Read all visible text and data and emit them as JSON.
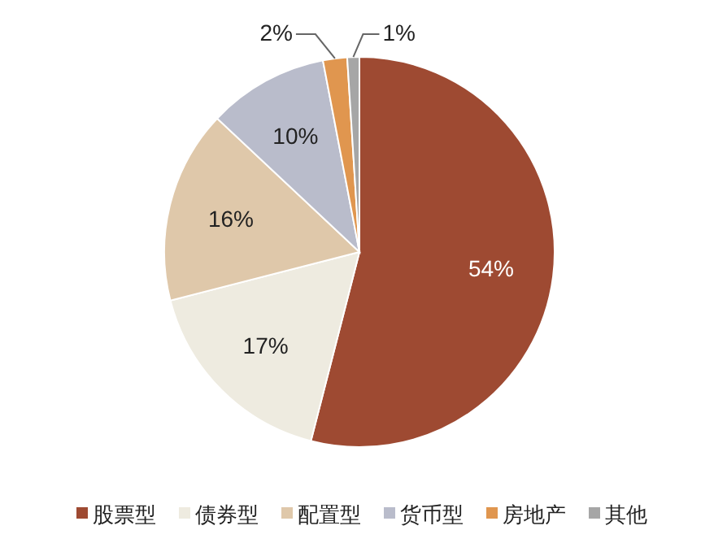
{
  "chart_data": {
    "type": "pie",
    "categories": [
      "股票型",
      "债券型",
      "配置型",
      "货币型",
      "房地产",
      "其他"
    ],
    "values": [
      54,
      17,
      16,
      10,
      2,
      1
    ],
    "value_labels": [
      "54%",
      "17%",
      "16%",
      "10%",
      "2%",
      "1%"
    ],
    "colors": [
      "#9e4a32",
      "#eeebe0",
      "#dfc8aa",
      "#b9bccb",
      "#e0964f",
      "#a6a6a6"
    ],
    "legend": "bottom"
  }
}
